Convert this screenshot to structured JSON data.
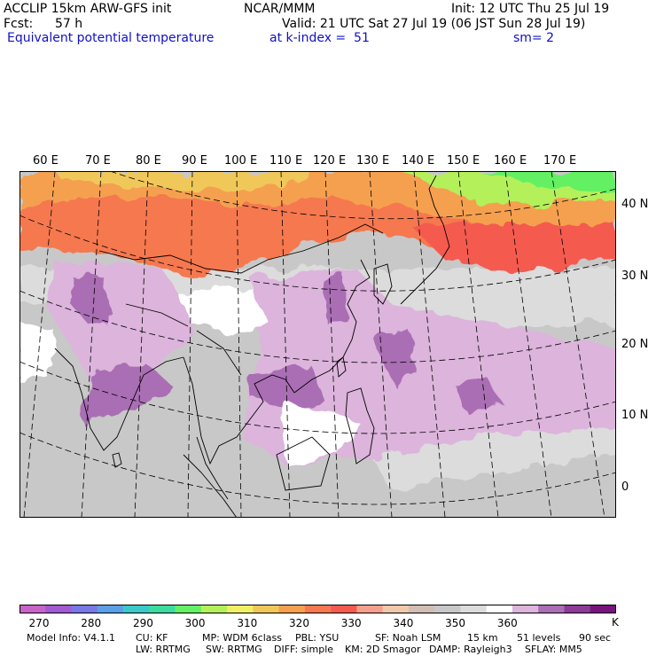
{
  "header": {
    "model": "ACCLIP 15km ARW-GFS init",
    "center": "NCAR/MMM",
    "init": "Init: 12 UTC Thu 25 Jul 19",
    "fcst_label": "Fcst:",
    "fcst_value": "57 h",
    "valid": "Valid: 21 UTC Sat 27 Jul 19 (06 JST Sun 28 Jul 19)",
    "field": "Equivalent potential temperature",
    "level": "at k-index =  51",
    "smoothing": "sm= 2"
  },
  "map": {
    "lon_labels": [
      "60 E",
      "70 E",
      "80 E",
      "90 E",
      "100 E",
      "110 E",
      "120 E",
      "130 E",
      "140 E",
      "150 E",
      "160 E",
      "170 E"
    ],
    "lat_labels": [
      "40 N",
      "30 N",
      "20 N",
      "10 N",
      "0"
    ]
  },
  "colorbar": {
    "colors": [
      "#c864c8",
      "#a05ad2",
      "#7878e6",
      "#5aa0e6",
      "#3cc8c8",
      "#3cdca0",
      "#64f064",
      "#b4f05a",
      "#f0f064",
      "#f0c85a",
      "#f5a050",
      "#f57850",
      "#f55a50",
      "#f5a08c",
      "#f0c8aa",
      "#d2beb4",
      "#c8c8c8",
      "#dcdcdc",
      "#ffffff",
      "#dcb4dc",
      "#aa6eb4",
      "#8c3c96",
      "#78147d"
    ],
    "labels": [
      "270",
      "280",
      "290",
      "300",
      "310",
      "320",
      "330",
      "340",
      "350",
      "360"
    ],
    "unit": "K"
  },
  "footer": {
    "line1": [
      "Model Info: V4.1.1",
      "CU: KF",
      "MP: WDM 6class",
      "PBL: YSU",
      "SF: Noah LSM",
      "15 km",
      "51 levels",
      "90 sec"
    ],
    "line2": [
      "LW: RRTMG",
      "SW: RRTMG",
      "DIFF: simple",
      "KM: 2D Smagor",
      "DAMP: Rayleigh3",
      "SFLAY: MM5"
    ]
  }
}
